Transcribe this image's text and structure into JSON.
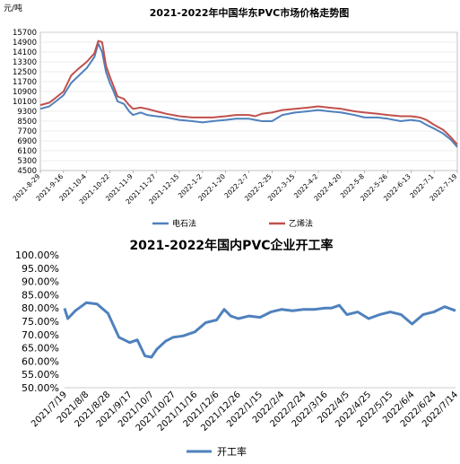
{
  "chart_data": [
    {
      "type": "line",
      "title": "2021-2022年中国华东PVC市场价格走势图",
      "ylabel": "元/吨",
      "ylim": [
        4500,
        15700
      ],
      "yticks": [
        4500,
        5300,
        6100,
        6900,
        7700,
        8500,
        9300,
        10100,
        10900,
        11700,
        12500,
        13300,
        14100,
        14900,
        15700
      ],
      "x_tick_labels": [
        "2021-8-29",
        "2021-9-16",
        "2021-10-4",
        "2021-10-22",
        "2021-11-9",
        "2021-11-27",
        "2021-12-15",
        "2022-1-2",
        "2022-1-20",
        "2022-2-7",
        "2022-2-25",
        "2022-3-15",
        "2022-4-2",
        "2022-4-20",
        "2022-5-8",
        "2022-5-26",
        "2022-6-13",
        "2022-7-1",
        "2022-7-19"
      ],
      "x": [
        "2021-8-29",
        "2021-9-5",
        "2021-9-10",
        "2021-9-16",
        "2021-9-22",
        "2021-9-27",
        "2021-10-4",
        "2021-10-10",
        "2021-10-13",
        "2021-10-16",
        "2021-10-19",
        "2021-10-22",
        "2021-10-25",
        "2021-10-28",
        "2021-11-2",
        "2021-11-6",
        "2021-11-9",
        "2021-11-15",
        "2021-11-20",
        "2021-11-27",
        "2021-12-5",
        "2021-12-15",
        "2021-12-25",
        "2022-1-2",
        "2022-1-10",
        "2022-1-20",
        "2022-1-28",
        "2022-2-7",
        "2022-2-12",
        "2022-2-17",
        "2022-2-25",
        "2022-3-5",
        "2022-3-15",
        "2022-3-25",
        "2022-4-2",
        "2022-4-10",
        "2022-4-20",
        "2022-4-30",
        "2022-5-8",
        "2022-5-18",
        "2022-5-26",
        "2022-6-5",
        "2022-6-13",
        "2022-6-20",
        "2022-6-25",
        "2022-7-1",
        "2022-7-8",
        "2022-7-14",
        "2022-7-19"
      ],
      "series": [
        {
          "name": "电石法",
          "color": "#4f81bd",
          "values": [
            9500,
            9700,
            10100,
            10600,
            11600,
            12100,
            12800,
            13700,
            14800,
            14100,
            12500,
            11600,
            10900,
            10100,
            9900,
            9300,
            9000,
            9200,
            9000,
            8900,
            8800,
            8600,
            8500,
            8400,
            8500,
            8600,
            8700,
            8700,
            8600,
            8500,
            8500,
            9000,
            9200,
            9300,
            9400,
            9300,
            9200,
            9000,
            8800,
            8800,
            8700,
            8500,
            8600,
            8500,
            8200,
            7900,
            7500,
            7000,
            6400
          ]
        },
        {
          "name": "乙烯法",
          "color": "#c0504d",
          "values": [
            9800,
            10000,
            10400,
            10900,
            12200,
            12700,
            13300,
            14000,
            15000,
            14900,
            13000,
            12100,
            11300,
            10500,
            10300,
            9800,
            9500,
            9600,
            9500,
            9300,
            9100,
            8900,
            8800,
            8800,
            8800,
            8900,
            9000,
            9000,
            8900,
            9100,
            9200,
            9400,
            9500,
            9600,
            9700,
            9600,
            9500,
            9300,
            9200,
            9100,
            9000,
            8900,
            8900,
            8800,
            8600,
            8200,
            7800,
            7200,
            6600
          ]
        }
      ]
    },
    {
      "type": "line",
      "title": "2021-2022年国内PVC企业开工率",
      "ylim": [
        50,
        100
      ],
      "yticks": [
        "50.00%",
        "55.00%",
        "60.00%",
        "65.00%",
        "70.00%",
        "75.00%",
        "80.00%",
        "85.00%",
        "90.00%",
        "95.00%",
        "100.00%"
      ],
      "x_tick_labels": [
        "2021/7/19",
        "2021/8/8",
        "2021/8/28",
        "2021/9/17",
        "2021/10/7",
        "2021/10/27",
        "2021/11/16",
        "2021/12/6",
        "2021/12/26",
        "2022/1/15",
        "2022/2/4",
        "2022/2/24",
        "2022/3/16",
        "2022/4/5",
        "2022/4/25",
        "2022/5/15",
        "2022/6/4",
        "2022/6/24",
        "2022/7/14"
      ],
      "x": [
        "2021/7/19",
        "2021/7/22",
        "2021/7/29",
        "2021/8/8",
        "2021/8/18",
        "2021/8/28",
        "2021/9/7",
        "2021/9/17",
        "2021/9/24",
        "2021/10/1",
        "2021/10/7",
        "2021/10/12",
        "2021/10/20",
        "2021/10/27",
        "2021/11/5",
        "2021/11/16",
        "2021/11/26",
        "2021/12/6",
        "2021/12/13",
        "2021/12/19",
        "2021/12/26",
        "2022/1/5",
        "2022/1/15",
        "2022/1/25",
        "2022/2/4",
        "2022/2/14",
        "2022/2/24",
        "2022/3/6",
        "2022/3/16",
        "2022/3/22",
        "2022/3/29",
        "2022/4/5",
        "2022/4/15",
        "2022/4/25",
        "2022/5/5",
        "2022/5/15",
        "2022/5/25",
        "2022/6/4",
        "2022/6/14",
        "2022/6/24",
        "2022/7/4",
        "2022/7/14"
      ],
      "series": [
        {
          "name": "开工率",
          "color": "#4f81bd",
          "values": [
            79.9,
            76.0,
            79.0,
            82.0,
            81.5,
            78.0,
            69.0,
            67.0,
            68.0,
            62.0,
            61.5,
            64.5,
            67.5,
            69.0,
            69.5,
            71.0,
            74.5,
            75.5,
            79.5,
            77.0,
            76.0,
            77.0,
            76.5,
            78.5,
            79.5,
            79.0,
            79.5,
            79.5,
            80.0,
            80.0,
            81.0,
            77.5,
            78.5,
            76.0,
            77.5,
            78.5,
            77.5,
            74.0,
            77.5,
            78.5,
            80.5,
            79.0
          ]
        }
      ]
    }
  ]
}
